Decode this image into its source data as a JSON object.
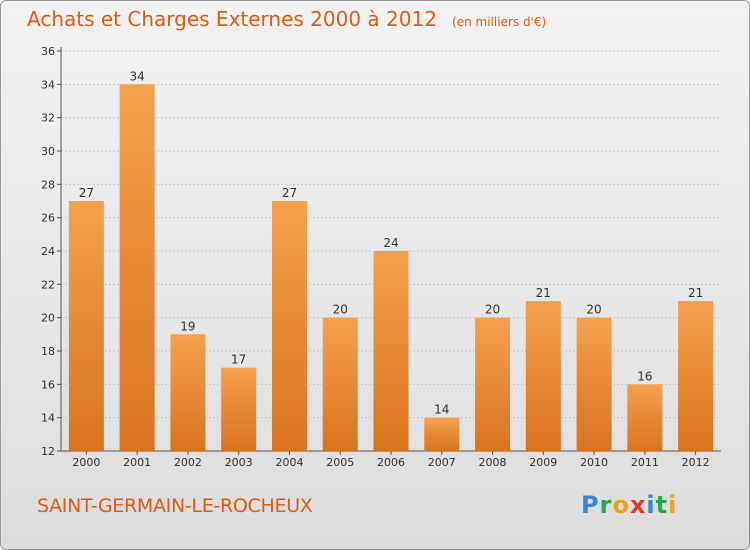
{
  "title": "Achats et Charges Externes 2000 à 2012",
  "unit": "(en milliers d'€)",
  "commune": "SAINT-GERMAIN-LE-ROCHEUX",
  "logo": {
    "text": "Proxiti",
    "letters": [
      {
        "char": "P",
        "color": "#3a86d0"
      },
      {
        "char": "r",
        "color": "#2ea84a"
      },
      {
        "char": "o",
        "color": "#f2a11c"
      },
      {
        "char": "x",
        "color": "#e03a2a"
      },
      {
        "char": "i",
        "color": "#3a86d0"
      },
      {
        "char": "t",
        "color": "#2ea84a"
      },
      {
        "char": "i",
        "color": "#f2a11c"
      }
    ]
  },
  "colors": {
    "bar_top": "#f5a14e",
    "bar_bottom": "#d8731f",
    "text_accent": "#e05a14",
    "grid": "#c4c4c4"
  },
  "chart_data": {
    "type": "bar",
    "categories": [
      "2000",
      "2001",
      "2002",
      "2003",
      "2004",
      "2005",
      "2006",
      "2007",
      "2008",
      "2009",
      "2010",
      "2011",
      "2012"
    ],
    "values": [
      27,
      34,
      19,
      17,
      27,
      20,
      24,
      14,
      20,
      21,
      20,
      16,
      21
    ],
    "ylim": [
      12,
      36
    ],
    "yticks": [
      12,
      14,
      16,
      18,
      20,
      22,
      24,
      26,
      28,
      30,
      32,
      34,
      36
    ],
    "grid": true,
    "data_labels": true
  }
}
